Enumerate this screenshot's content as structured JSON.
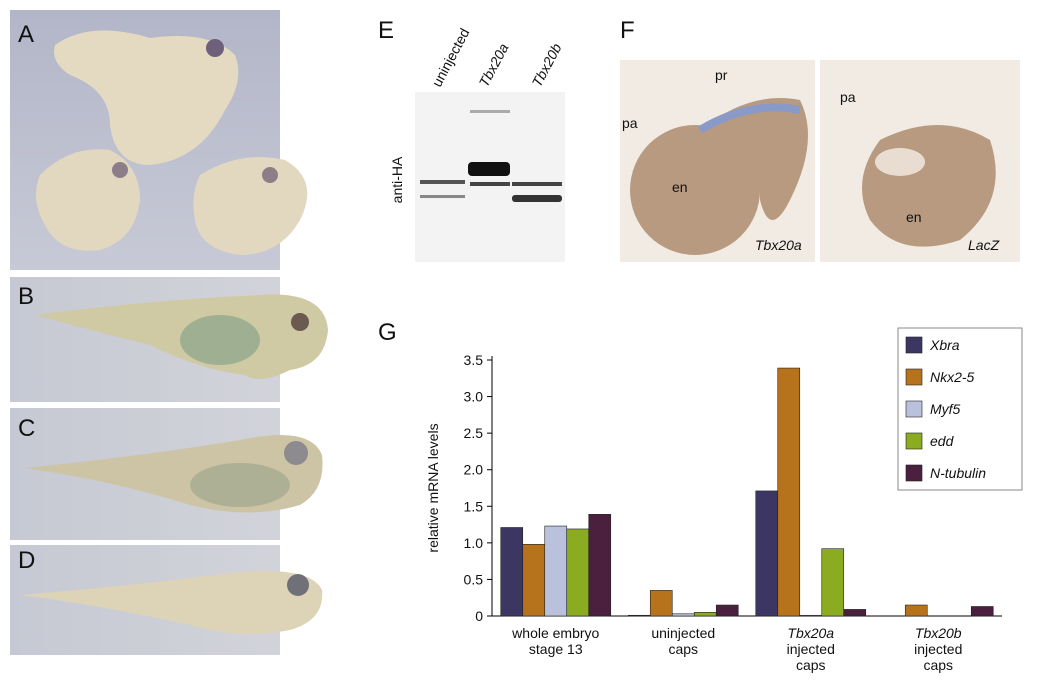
{
  "panel_labels": [
    "A",
    "B",
    "C",
    "D",
    "E",
    "F",
    "G"
  ],
  "blot": {
    "lanes": [
      "uninjected",
      "Tbx20a",
      "Tbx20b"
    ],
    "antibody": "anti-HA"
  },
  "sections": {
    "left": {
      "labels": [
        "pa",
        "pr",
        "en"
      ],
      "gene": "Tbx20a"
    },
    "right": {
      "labels": [
        "pa",
        "en"
      ],
      "gene": "LacZ"
    }
  },
  "chart_data": {
    "type": "bar",
    "categories": [
      [
        "whole embryo",
        "stage 13"
      ],
      [
        "uninjected",
        "caps"
      ],
      [
        "Tbx20a",
        "injected",
        "caps"
      ],
      [
        "Tbx20b",
        "injected",
        "caps"
      ]
    ],
    "y_label": "relative mRNA levels",
    "series": [
      {
        "name": "Xbra",
        "color": "#3c3762",
        "values": [
          1.21,
          0.01,
          1.71,
          0
        ]
      },
      {
        "name": "Nkx2-5",
        "color": "#b7731c",
        "values": [
          0.98,
          0.35,
          3.39,
          0.15
        ]
      },
      {
        "name": "Myf5",
        "color": "#b9c1dd",
        "values": [
          1.23,
          0.03,
          0.01,
          0
        ]
      },
      {
        "name": "edd",
        "color": "#8bab20",
        "values": [
          1.19,
          0.05,
          0.92,
          0
        ]
      },
      {
        "name": "N-tubulin",
        "color": "#4b1f3e",
        "values": [
          1.39,
          0.15,
          0.09,
          0.13
        ]
      }
    ],
    "ylim": [
      0,
      3.5
    ],
    "yticks": [
      0,
      0.5,
      {
        "value": 1,
        "label": "1.0"
      },
      1.5,
      {
        "value": 2,
        "label": "2.0"
      },
      2.5,
      {
        "value": 3,
        "label": "3.0"
      },
      3.5
    ],
    "legend": "upper right"
  }
}
